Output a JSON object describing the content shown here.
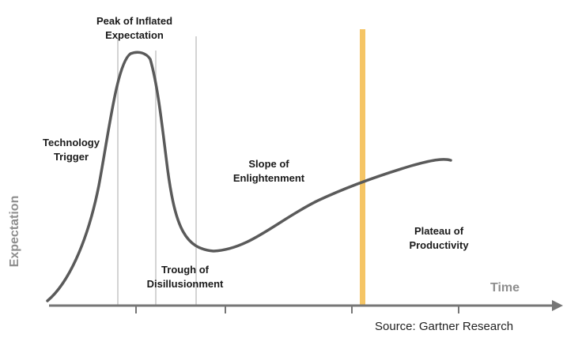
{
  "diagram": {
    "phases": {
      "technology_trigger": {
        "line1": "Technology",
        "line2": "Trigger"
      },
      "peak": {
        "line1": "Peak of Inflated",
        "line2": "Expectation"
      },
      "trough": {
        "line1": "Trough of",
        "line2": "Disillusionment"
      },
      "slope": {
        "line1": "Slope of",
        "line2": "Enlightenment"
      },
      "plateau": {
        "line1": "Plateau of",
        "line2": "Productivity"
      }
    },
    "axes": {
      "y_label": "Expectation",
      "x_label": "Time"
    },
    "source": "Source: Gartner Research",
    "colors": {
      "curve": "#5a5a5a",
      "axis": "#767676",
      "divider": "#d4d4d4",
      "highlight": "#f5c565",
      "text": "#1a1a1a",
      "axis_text": "#8e8e8e"
    }
  }
}
